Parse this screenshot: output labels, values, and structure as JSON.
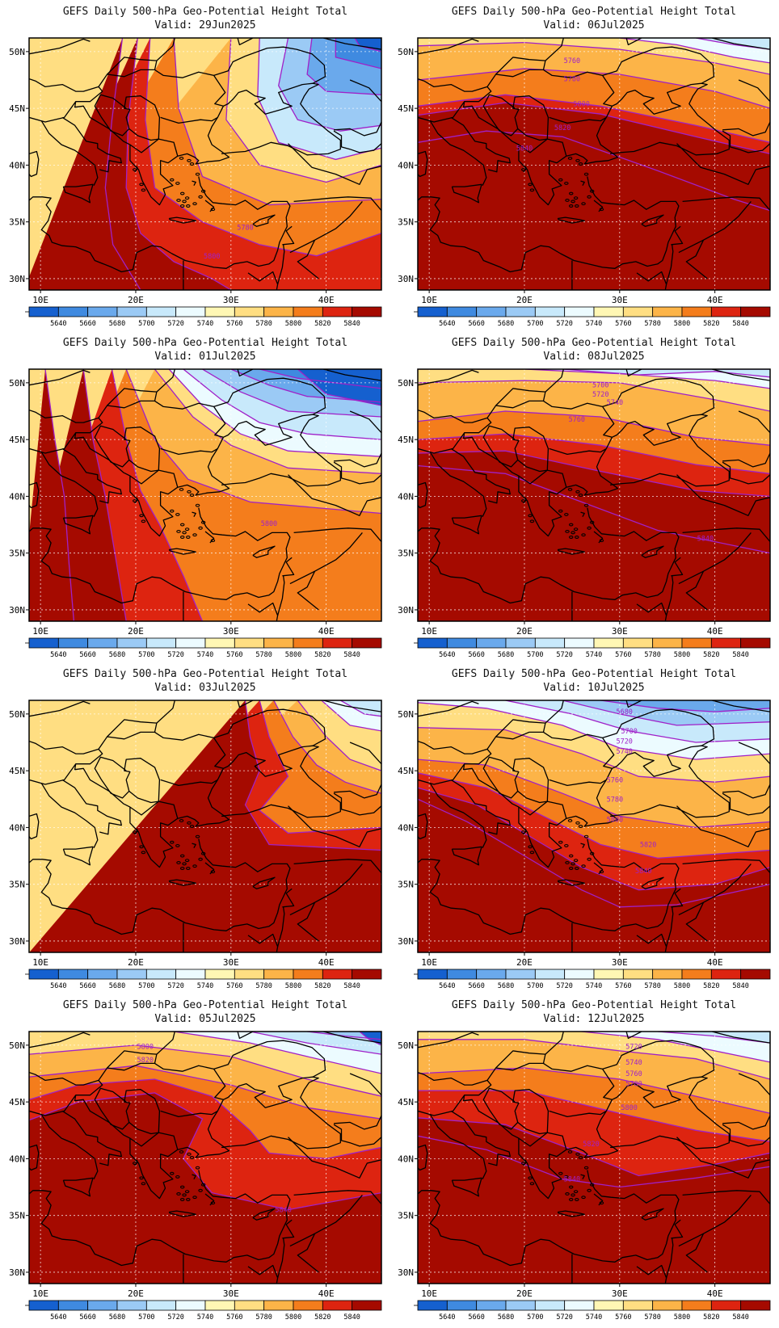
{
  "chart_data": {
    "type": "heatmap",
    "title": "GEFS Daily 500-hPa Geo-Potential Height Total",
    "valid_prefix": "Valid:",
    "x_ticks": [
      "10E",
      "20E",
      "30E",
      "40E"
    ],
    "y_ticks": [
      "50N",
      "45N",
      "40N",
      "35N",
      "30N"
    ],
    "colorbar_levels": [
      "5640",
      "5660",
      "5680",
      "5700",
      "5720",
      "5740",
      "5760",
      "5780",
      "5800",
      "5820",
      "5840"
    ],
    "colorbar_colors": [
      "#1560cf",
      "#3f8ae0",
      "#6aa9ec",
      "#9bcaf5",
      "#c8e9fb",
      "#ecfbff",
      "#fff7b4",
      "#ffde82",
      "#fcb448",
      "#f47d1c",
      "#dd2410",
      "#a50a00"
    ],
    "grid": true,
    "contour_color": "#a020c8",
    "panels": [
      {
        "date": "29Jun2025",
        "contour_labels": [
          "5780",
          "5800"
        ]
      },
      {
        "date": "06Jul2025",
        "contour_labels": [
          "5760",
          "5780",
          "5800",
          "5820",
          "5840"
        ]
      },
      {
        "date": "01Jul2025",
        "contour_labels": [
          "5800"
        ]
      },
      {
        "date": "08Jul2025",
        "contour_labels": [
          "5700",
          "5720",
          "5740",
          "5760",
          "5840"
        ]
      },
      {
        "date": "03Jul2025",
        "contour_labels": []
      },
      {
        "date": "10Jul2025",
        "contour_labels": [
          "5680",
          "5700",
          "5720",
          "5740",
          "5760",
          "5780",
          "5800",
          "5820",
          "5840"
        ]
      },
      {
        "date": "05Jul2025",
        "contour_labels": [
          "5800",
          "5820",
          "5840"
        ]
      },
      {
        "date": "12Jul2025",
        "contour_labels": [
          "5720",
          "5740",
          "5760",
          "5780",
          "5800",
          "5820",
          "5840"
        ]
      }
    ]
  }
}
